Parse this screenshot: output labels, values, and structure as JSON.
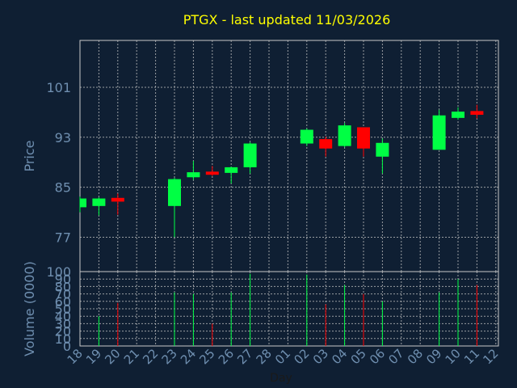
{
  "title": "PTGX - last updated 11/03/2026",
  "colors": {
    "background": "#0f1f33",
    "title": "#ffff00",
    "axis_text": "#6f8fb0",
    "grid": "#c8c8c8",
    "up": "#00ff44",
    "down": "#ff0000"
  },
  "chart_data": {
    "type": "candlestick",
    "title": "PTGX - last updated 11/03/2026",
    "xlabel": "Day",
    "x_ticks": [
      "18",
      "19",
      "20",
      "21",
      "22",
      "23",
      "24",
      "25",
      "26",
      "27",
      "28",
      "01",
      "02",
      "03",
      "04",
      "05",
      "06",
      "07",
      "08",
      "09",
      "10",
      "11",
      "12"
    ],
    "price_panel": {
      "ylabel": "Price",
      "yticks": [
        77,
        85,
        93,
        101
      ],
      "ylim": [
        71.5,
        108.5
      ],
      "grid": true,
      "candles": [
        {
          "x": "18",
          "open": 81.8,
          "high": 83.5,
          "low": 81.0,
          "close": 83.2
        },
        {
          "x": "19",
          "open": 82.0,
          "high": 83.4,
          "low": 80.5,
          "close": 83.2
        },
        {
          "x": "20",
          "open": 83.3,
          "high": 84.0,
          "low": 80.6,
          "close": 82.7
        },
        {
          "x": "23",
          "open": 82.0,
          "high": 86.5,
          "low": 77.0,
          "close": 86.3
        },
        {
          "x": "24",
          "open": 86.6,
          "high": 89.2,
          "low": 86.2,
          "close": 87.4
        },
        {
          "x": "25",
          "open": 87.5,
          "high": 88.4,
          "low": 86.8,
          "close": 87.0
        },
        {
          "x": "26",
          "open": 87.3,
          "high": 88.3,
          "low": 85.6,
          "close": 88.2
        },
        {
          "x": "27",
          "open": 88.2,
          "high": 92.2,
          "low": 87.2,
          "close": 92.0
        },
        {
          "x": "02",
          "open": 92.0,
          "high": 94.4,
          "low": 91.6,
          "close": 94.2
        },
        {
          "x": "03",
          "open": 92.7,
          "high": 93.1,
          "low": 89.9,
          "close": 91.2
        },
        {
          "x": "04",
          "open": 91.6,
          "high": 95.3,
          "low": 91.4,
          "close": 94.9
        },
        {
          "x": "05",
          "open": 94.6,
          "high": 94.6,
          "low": 89.9,
          "close": 91.2
        },
        {
          "x": "06",
          "open": 89.9,
          "high": 92.8,
          "low": 87.2,
          "close": 92.1
        },
        {
          "x": "09",
          "open": 91.0,
          "high": 97.4,
          "low": 91.0,
          "close": 96.5
        },
        {
          "x": "10",
          "open": 96.1,
          "high": 97.8,
          "low": 95.8,
          "close": 97.1
        },
        {
          "x": "11",
          "open": 97.2,
          "high": 98.2,
          "low": 96.0,
          "close": 96.6
        }
      ]
    },
    "volume_panel": {
      "ylabel": "Volume (0000)",
      "yticks": [
        0,
        10,
        20,
        30,
        40,
        50,
        60,
        70,
        80,
        90,
        100
      ],
      "ylim": [
        0,
        100
      ],
      "grid": true,
      "bars": [
        {
          "x": "19",
          "value": 40,
          "direction": "up"
        },
        {
          "x": "20",
          "value": 58,
          "direction": "down"
        },
        {
          "x": "23",
          "value": 72,
          "direction": "up"
        },
        {
          "x": "24",
          "value": 70,
          "direction": "up"
        },
        {
          "x": "25",
          "value": 30,
          "direction": "down"
        },
        {
          "x": "26",
          "value": 72,
          "direction": "up"
        },
        {
          "x": "27",
          "value": 97,
          "direction": "up"
        },
        {
          "x": "02",
          "value": 96,
          "direction": "up"
        },
        {
          "x": "03",
          "value": 56,
          "direction": "down"
        },
        {
          "x": "04",
          "value": 82,
          "direction": "up"
        },
        {
          "x": "05",
          "value": 70,
          "direction": "down"
        },
        {
          "x": "06",
          "value": 60,
          "direction": "up"
        },
        {
          "x": "09",
          "value": 72,
          "direction": "up"
        },
        {
          "x": "10",
          "value": 90,
          "direction": "up"
        },
        {
          "x": "11",
          "value": 82,
          "direction": "down"
        }
      ]
    }
  }
}
